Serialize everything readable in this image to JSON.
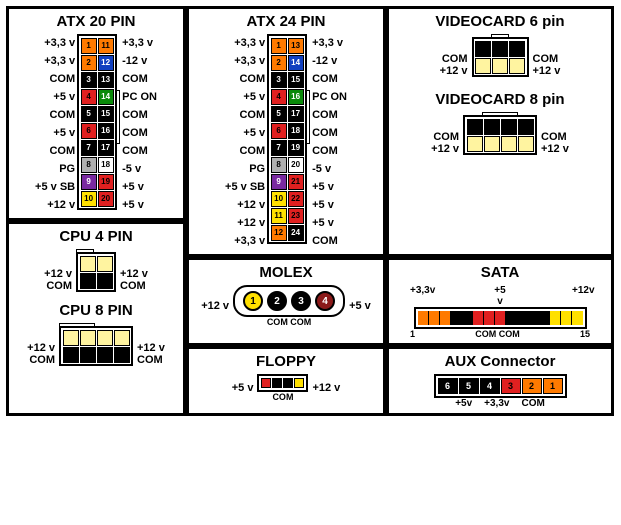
{
  "colors": {
    "orange": "#ff7a00",
    "red": "#e02020",
    "black": "#000000",
    "green": "#0a8a0a",
    "white": "#ffffff",
    "gray": "#b0b0b0",
    "purple": "#7a2aa0",
    "yellow": "#ffe000",
    "blue": "#1040c0",
    "darkred": "#8b1a1a",
    "ltyellow": "#fff4a0"
  },
  "atx20": {
    "title": "ATX 20 PIN",
    "left": [
      "+3,3 v",
      "+3,3 v",
      "COM",
      "+5 v",
      "COM",
      "+5 v",
      "COM",
      "PG",
      "+5 v SB",
      "+12 v"
    ],
    "right": [
      "+3,3 v",
      "-12 v",
      "COM",
      "PC ON",
      "COM",
      "COM",
      "COM",
      "-5 v",
      "+5 v",
      "+5 v"
    ],
    "pinsL": [
      [
        "1",
        "orange"
      ],
      [
        "2",
        "orange"
      ],
      [
        "3",
        "black"
      ],
      [
        "4",
        "red"
      ],
      [
        "5",
        "black"
      ],
      [
        "6",
        "red"
      ],
      [
        "7",
        "black"
      ],
      [
        "8",
        "gray"
      ],
      [
        "9",
        "purple"
      ],
      [
        "10",
        "yellow"
      ]
    ],
    "pinsR": [
      [
        "11",
        "orange"
      ],
      [
        "12",
        "blue"
      ],
      [
        "13",
        "black"
      ],
      [
        "14",
        "green"
      ],
      [
        "15",
        "black"
      ],
      [
        "16",
        "black"
      ],
      [
        "17",
        "black"
      ],
      [
        "18",
        "white"
      ],
      [
        "19",
        "red"
      ],
      [
        "20",
        "red"
      ]
    ]
  },
  "atx24": {
    "title": "ATX 24 PIN",
    "left": [
      "+3,3 v",
      "+3,3 v",
      "COM",
      "+5 v",
      "COM",
      "+5 v",
      "COM",
      "PG",
      "+5 v SB",
      "+12 v",
      "+12 v",
      "+3,3 v"
    ],
    "right": [
      "+3,3 v",
      "-12 v",
      "COM",
      "PC ON",
      "COM",
      "COM",
      "COM",
      "-5 v",
      "+5 v",
      "+5 v",
      "+5 v",
      "COM"
    ],
    "pinsL": [
      [
        "1",
        "orange"
      ],
      [
        "2",
        "orange"
      ],
      [
        "3",
        "black"
      ],
      [
        "4",
        "red"
      ],
      [
        "5",
        "black"
      ],
      [
        "6",
        "red"
      ],
      [
        "7",
        "black"
      ],
      [
        "8",
        "gray"
      ],
      [
        "9",
        "purple"
      ],
      [
        "10",
        "yellow"
      ],
      [
        "11",
        "yellow"
      ],
      [
        "12",
        "orange"
      ]
    ],
    "pinsR": [
      [
        "13",
        "orange"
      ],
      [
        "14",
        "blue"
      ],
      [
        "15",
        "black"
      ],
      [
        "16",
        "green"
      ],
      [
        "17",
        "black"
      ],
      [
        "18",
        "black"
      ],
      [
        "19",
        "black"
      ],
      [
        "20",
        "white"
      ],
      [
        "21",
        "red"
      ],
      [
        "22",
        "red"
      ],
      [
        "23",
        "red"
      ],
      [
        "24",
        "black"
      ]
    ]
  },
  "vc6": {
    "title": "VIDEOCARD 6 pin",
    "top": [
      "black",
      "black",
      "black"
    ],
    "bot": [
      "ltyellow",
      "ltyellow",
      "ltyellow"
    ],
    "lt": "COM",
    "lb": "+12 v",
    "rt": "COM",
    "rb": "+12 v"
  },
  "vc8": {
    "title": "VIDEOCARD 8 pin",
    "top": [
      "black",
      "black",
      "black",
      "black"
    ],
    "bot": [
      "ltyellow",
      "ltyellow",
      "ltyellow",
      "ltyellow"
    ],
    "lt": "COM",
    "lb": "+12 v",
    "rt": "COM",
    "rb": "+12 v"
  },
  "cpu4": {
    "title": "CPU 4 PIN",
    "top": [
      "ltyellow",
      "ltyellow"
    ],
    "bot": [
      "black",
      "black"
    ],
    "lt": "+12 v",
    "lb": "COM",
    "rt": "+12 v",
    "rb": "COM"
  },
  "cpu8": {
    "title": "CPU 8 PIN",
    "top": [
      "ltyellow",
      "ltyellow",
      "ltyellow",
      "ltyellow"
    ],
    "bot": [
      "black",
      "black",
      "black",
      "black"
    ],
    "lt": "+12 v",
    "lb": "COM",
    "rt": "+12 v",
    "rb": "COM"
  },
  "molex": {
    "title": "MOLEX",
    "pins": [
      [
        "1",
        "yellow"
      ],
      [
        "2",
        "black"
      ],
      [
        "3",
        "black"
      ],
      [
        "4",
        "darkred"
      ]
    ],
    "l": "+12 v",
    "r": "+5 v",
    "below": "COM    COM"
  },
  "floppy": {
    "title": "FLOPPY",
    "pins": [
      "red",
      "black",
      "black",
      "yellow"
    ],
    "l": "+5 v",
    "r": "+12 v",
    "below": "COM"
  },
  "sata": {
    "title": "SATA",
    "top": [
      "+3,3v",
      "+5 v",
      "+12v"
    ],
    "pins": [
      "orange",
      "orange",
      "orange",
      "black",
      "black",
      "red",
      "red",
      "red",
      "black",
      "black",
      "black",
      "black",
      "yellow",
      "yellow",
      "yellow"
    ],
    "lb": "1",
    "rb": "15",
    "below": "COM      COM"
  },
  "aux": {
    "title": "AUX Connector",
    "pins": [
      [
        "6",
        "black"
      ],
      [
        "5",
        "black"
      ],
      [
        "4",
        "black"
      ],
      [
        "3",
        "red"
      ],
      [
        "2",
        "orange"
      ],
      [
        "1",
        "orange"
      ]
    ],
    "below": [
      "+5v",
      "+3,3v",
      "COM"
    ]
  }
}
